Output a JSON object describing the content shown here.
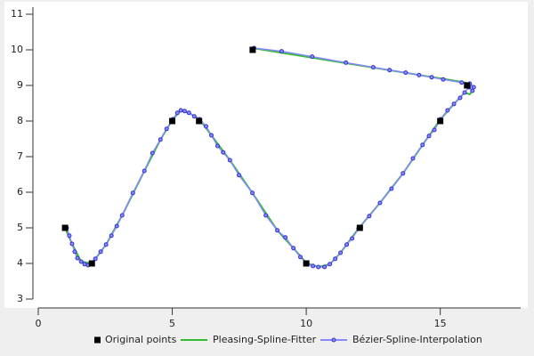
{
  "chart_data": {
    "type": "line",
    "xlim": [
      0,
      18
    ],
    "ylim": [
      3,
      11.2
    ],
    "xticks": [
      0,
      5,
      10,
      15
    ],
    "yticks": [
      3,
      4,
      5,
      6,
      7,
      8,
      9,
      10,
      11
    ],
    "legend": "bottom",
    "series": [
      {
        "name": "Original points",
        "color": "#000000",
        "marker": "square",
        "line": false,
        "x": [
          1,
          2,
          5,
          6,
          10,
          12,
          15,
          16,
          8
        ],
        "values": [
          5,
          4,
          8,
          8,
          4,
          5,
          8,
          9,
          10
        ]
      },
      {
        "name": "Pleasing-Spline-Fitter",
        "color": "#33bb33",
        "marker": "none",
        "line": true,
        "x": [
          1,
          1.26,
          1.6,
          2,
          2.53,
          3.13,
          3.96,
          4.56,
          5.02,
          5.32,
          5.62,
          6.02,
          6.46,
          7.15,
          7.99,
          8.92,
          9.52,
          10.02,
          10.45,
          10.88,
          11.28,
          11.95,
          12.75,
          13.61,
          14.34,
          15.01,
          15.51,
          15.91,
          16.1,
          16.2,
          16.25,
          16.1,
          15.8,
          8
        ],
        "values": [
          5,
          4.55,
          4.05,
          4,
          4.53,
          5.35,
          6.6,
          7.48,
          8.05,
          8.3,
          8.23,
          8.05,
          7.6,
          6.9,
          5.98,
          4.93,
          4.43,
          4,
          3.9,
          3.98,
          4.3,
          4.98,
          5.7,
          6.53,
          7.33,
          8.05,
          8.48,
          8.8,
          8.75,
          8.85,
          8.95,
          9.05,
          9.1,
          10.05
        ]
      },
      {
        "name": "Bézier-Spline-Interpolation",
        "color": "#8888ff",
        "marker": "circle",
        "line": true,
        "x": [
          1.06,
          1.16,
          1.26,
          1.36,
          1.46,
          1.6,
          1.73,
          1.86,
          2,
          2.13,
          2.33,
          2.53,
          2.73,
          2.93,
          3.13,
          3.53,
          3.96,
          4.26,
          4.56,
          4.79,
          5.02,
          5.19,
          5.32,
          5.46,
          5.62,
          5.82,
          6.02,
          6.26,
          6.46,
          6.69,
          6.9,
          7.15,
          7.49,
          7.99,
          8.49,
          8.92,
          9.22,
          9.52,
          9.78,
          10.02,
          10.25,
          10.45,
          10.68,
          10.88,
          11.08,
          11.28,
          11.51,
          11.71,
          11.95,
          12.35,
          12.75,
          13.18,
          13.61,
          13.98,
          14.34,
          14.58,
          14.78,
          15.01,
          15.27,
          15.51,
          15.74,
          15.91,
          16.07,
          16.2,
          16.25,
          16.1,
          15.8,
          15.11,
          14.68,
          14.21,
          13.71,
          13.11,
          12.5,
          11.48,
          10.22,
          9.08,
          8.05
        ],
        "values": [
          5,
          4.78,
          4.55,
          4.33,
          4.15,
          4.05,
          3.98,
          3.95,
          4,
          4.13,
          4.33,
          4.53,
          4.78,
          5.05,
          5.35,
          5.98,
          6.6,
          7.1,
          7.48,
          7.78,
          8.05,
          8.23,
          8.3,
          8.28,
          8.23,
          8.13,
          8.05,
          7.85,
          7.6,
          7.3,
          7.12,
          6.9,
          6.48,
          5.98,
          5.35,
          4.93,
          4.73,
          4.43,
          4.18,
          4,
          3.93,
          3.9,
          3.9,
          3.98,
          4.13,
          4.3,
          4.53,
          4.7,
          4.98,
          5.33,
          5.7,
          6.1,
          6.53,
          6.95,
          7.33,
          7.58,
          7.75,
          8.05,
          8.3,
          8.48,
          8.65,
          8.8,
          8.95,
          8.85,
          8.95,
          9.05,
          9.08,
          9.17,
          9.23,
          9.29,
          9.36,
          9.43,
          9.51,
          9.64,
          9.81,
          9.96,
          10.05
        ]
      }
    ]
  }
}
